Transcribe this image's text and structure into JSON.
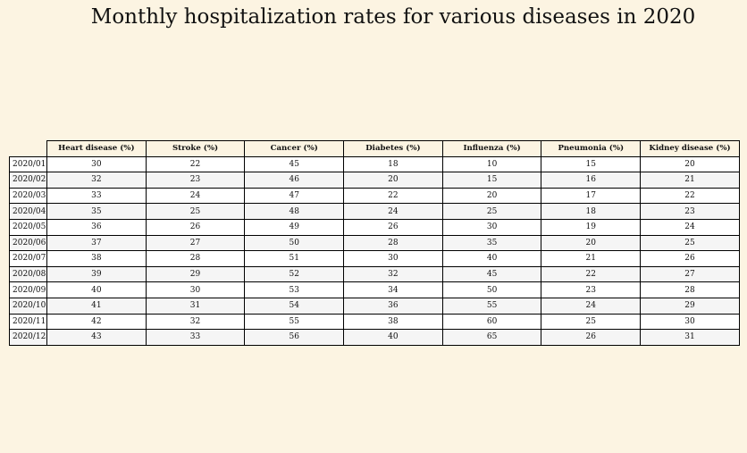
{
  "chart_data": {
    "type": "table",
    "title": "Monthly hospitalization rates for various diseases in 2020",
    "columns": [
      "Heart disease (%)",
      "Stroke (%)",
      "Cancer (%)",
      "Diabetes (%)",
      "Influenza (%)",
      "Pneumonia (%)",
      "Kidney disease (%)"
    ],
    "rows": [
      {
        "label": "2020/01",
        "values": [
          30,
          22,
          45,
          18,
          10,
          15,
          20
        ]
      },
      {
        "label": "2020/02",
        "values": [
          32,
          23,
          46,
          20,
          15,
          16,
          21
        ]
      },
      {
        "label": "2020/03",
        "values": [
          33,
          24,
          47,
          22,
          20,
          17,
          22
        ]
      },
      {
        "label": "2020/04",
        "values": [
          35,
          25,
          48,
          24,
          25,
          18,
          23
        ]
      },
      {
        "label": "2020/05",
        "values": [
          36,
          26,
          49,
          26,
          30,
          19,
          24
        ]
      },
      {
        "label": "2020/06",
        "values": [
          37,
          27,
          50,
          28,
          35,
          20,
          25
        ]
      },
      {
        "label": "2020/07",
        "values": [
          38,
          28,
          51,
          30,
          40,
          21,
          26
        ]
      },
      {
        "label": "2020/08",
        "values": [
          39,
          29,
          52,
          32,
          45,
          22,
          27
        ]
      },
      {
        "label": "2020/09",
        "values": [
          40,
          30,
          53,
          34,
          50,
          23,
          28
        ]
      },
      {
        "label": "2020/10",
        "values": [
          41,
          31,
          54,
          36,
          55,
          24,
          29
        ]
      },
      {
        "label": "2020/11",
        "values": [
          42,
          32,
          55,
          38,
          60,
          25,
          30
        ]
      },
      {
        "label": "2020/12",
        "values": [
          43,
          33,
          56,
          40,
          65,
          26,
          31
        ]
      }
    ]
  },
  "colors": {
    "background": "#fcf4e2",
    "header_background": "#fcf4e2",
    "row_background_odd": "#ffffff",
    "row_background_even": "#f5f5f5",
    "border": "#000000"
  }
}
